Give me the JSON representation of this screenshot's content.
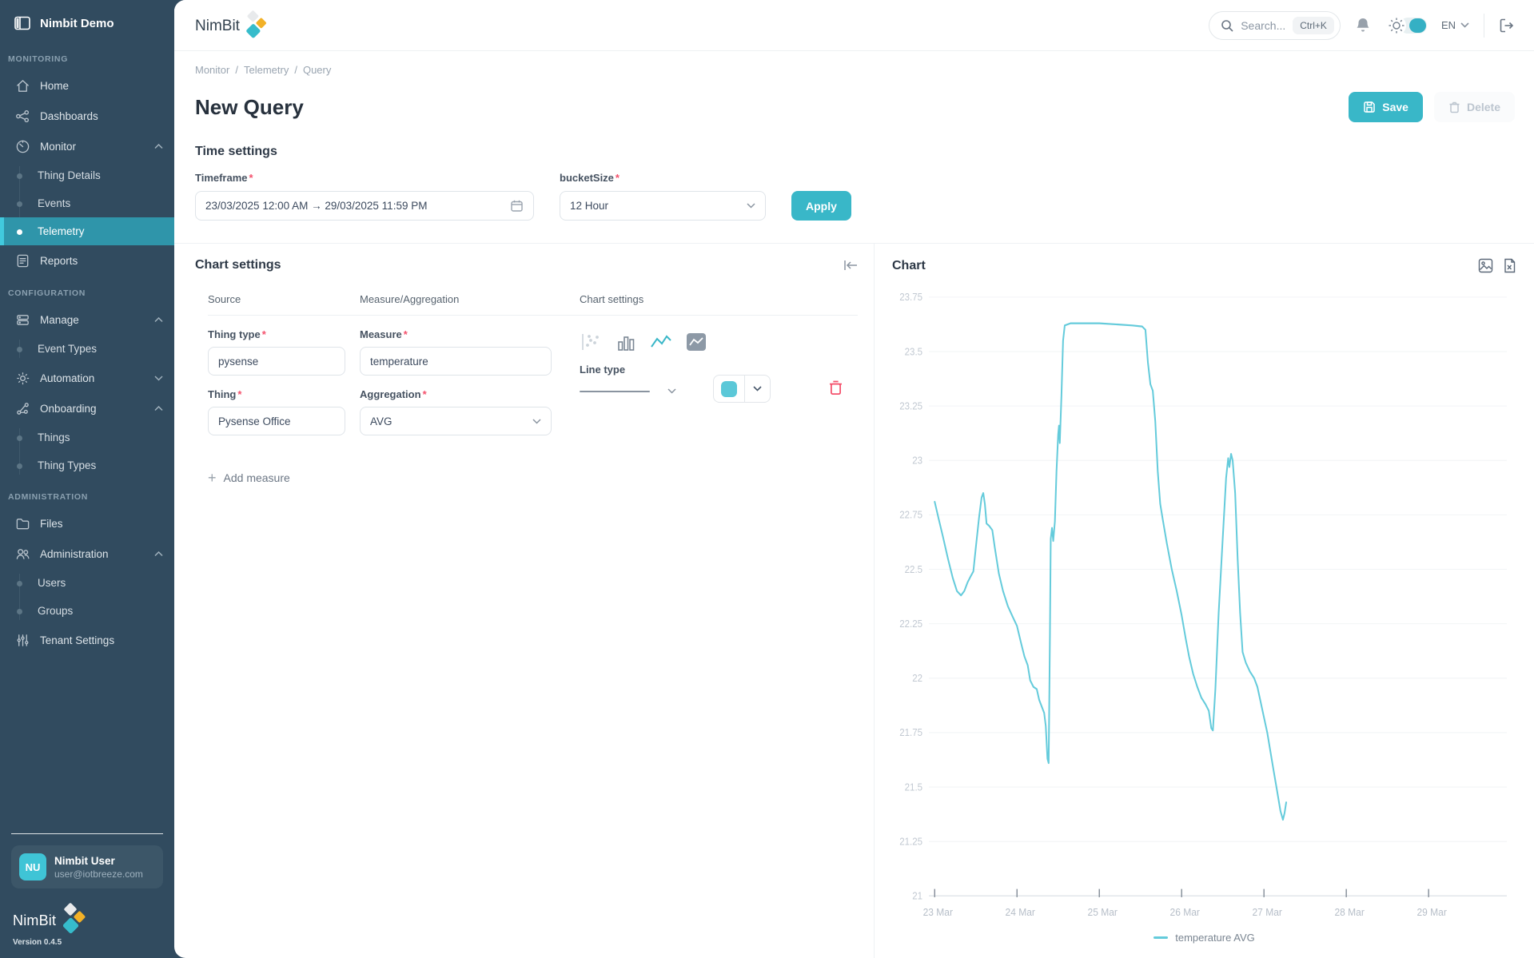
{
  "app": {
    "workspace": "Nimbit Demo",
    "brand": "NimBit",
    "version": "Version 0.4.5"
  },
  "topbar": {
    "search_placeholder": "Search...",
    "search_shortcut": "Ctrl+K",
    "language": "EN",
    "icons": [
      "search-icon",
      "bell-icon",
      "theme-toggle-sun-icon",
      "logout-icon"
    ]
  },
  "sidebar": {
    "sections": [
      {
        "label": "MONITORING",
        "items": [
          {
            "icon": "home",
            "label": "Home"
          },
          {
            "icon": "dashboards",
            "label": "Dashboards"
          },
          {
            "icon": "monitor",
            "label": "Monitor",
            "expanded": true,
            "children": [
              {
                "label": "Thing Details"
              },
              {
                "label": "Events"
              },
              {
                "label": "Telemetry",
                "active": true
              }
            ]
          },
          {
            "icon": "reports",
            "label": "Reports"
          }
        ]
      },
      {
        "label": "CONFIGURATION",
        "items": [
          {
            "icon": "manage",
            "label": "Manage",
            "expanded": true,
            "children": [
              {
                "label": "Event Types"
              }
            ]
          },
          {
            "icon": "automation",
            "label": "Automation",
            "expanded": false
          },
          {
            "icon": "onboarding",
            "label": "Onboarding",
            "expanded": true,
            "children": [
              {
                "label": "Things"
              },
              {
                "label": "Thing Types"
              }
            ]
          }
        ]
      },
      {
        "label": "ADMINISTRATION",
        "items": [
          {
            "icon": "files",
            "label": "Files"
          },
          {
            "icon": "administration",
            "label": "Administration",
            "expanded": true,
            "children": [
              {
                "label": "Users"
              },
              {
                "label": "Groups"
              }
            ]
          },
          {
            "icon": "tenant-settings",
            "label": "Tenant Settings"
          }
        ]
      }
    ]
  },
  "user": {
    "initials": "NU",
    "name": "Nimbit User",
    "email": "user@iotbreeze.com"
  },
  "breadcrumb": {
    "items": [
      "Monitor",
      "Telemetry",
      "Query"
    ],
    "separator": "/"
  },
  "page": {
    "title": "New Query",
    "save_label": "Save",
    "delete_label": "Delete"
  },
  "time_settings": {
    "heading": "Time settings",
    "timeframe_label": "Timeframe",
    "timeframe_value": "23/03/2025 12:00 AM → 29/03/2025 11:59 PM",
    "bucket_label": "bucketSize",
    "bucket_value": "12 Hour",
    "apply_label": "Apply"
  },
  "chart_settings": {
    "heading": "Chart settings",
    "columns": {
      "source": "Source",
      "measure": "Measure/Aggregation",
      "chart": "Chart settings"
    },
    "row": {
      "thing_type_label": "Thing type",
      "thing_type_value": "pysense",
      "thing_label": "Thing",
      "thing_value": "Pysense Office",
      "measure_label": "Measure",
      "measure_value": "temperature",
      "aggregation_label": "Aggregation",
      "aggregation_value": "AVG",
      "line_type_label": "Line type",
      "chart_type_icons": [
        "scatter-chart-icon",
        "bar-chart-icon",
        "line-chart-icon",
        "area-chart-icon"
      ],
      "selected_chart_type": "line",
      "series_color": "#5bc8d8"
    },
    "add_measure_label": "Add measure"
  },
  "chart_panel": {
    "title": "Chart",
    "icons": [
      "export-image-icon",
      "export-excel-icon"
    ]
  },
  "colors": {
    "accent": "#39b7c8",
    "sidebar_bg": "#314b5f",
    "sidebar_active": "#2f95aa",
    "danger": "#f4516c",
    "chart_line": "#64cbdb",
    "logo_gray": "#e8eaec",
    "logo_amber": "#f2b127",
    "logo_teal": "#36bccb"
  },
  "chart_data": {
    "type": "line",
    "title": "Chart",
    "xlabel": "",
    "ylabel": "",
    "xlim": [
      22.93,
      29.95
    ],
    "ylim": [
      21,
      23.75
    ],
    "y_tick_step": 0.25,
    "y_ticks": [
      21,
      21.25,
      21.5,
      21.75,
      22,
      22.25,
      22.5,
      22.75,
      23,
      23.25,
      23.5,
      23.75
    ],
    "x_ticks": [
      {
        "v": 23,
        "label": "23 Mar"
      },
      {
        "v": 24,
        "label": "24 Mar"
      },
      {
        "v": 25,
        "label": "25 Mar"
      },
      {
        "v": 26,
        "label": "26 Mar"
      },
      {
        "v": 27,
        "label": "27 Mar"
      },
      {
        "v": 28,
        "label": "28 Mar"
      },
      {
        "v": 29,
        "label": "29 Mar"
      }
    ],
    "grid": true,
    "legend_position": "bottom",
    "series": [
      {
        "name": "temperature AVG",
        "color": "#64cbdb",
        "points": [
          [
            23.0,
            22.81
          ],
          [
            23.05,
            22.73
          ],
          [
            23.1,
            22.65
          ],
          [
            23.16,
            22.55
          ],
          [
            23.22,
            22.46
          ],
          [
            23.27,
            22.4
          ],
          [
            23.32,
            22.38
          ],
          [
            23.36,
            22.4
          ],
          [
            23.4,
            22.44
          ],
          [
            23.44,
            22.47
          ],
          [
            23.47,
            22.49
          ],
          [
            23.5,
            22.6
          ],
          [
            23.54,
            22.74
          ],
          [
            23.57,
            22.83
          ],
          [
            23.59,
            22.85
          ],
          [
            23.61,
            22.8
          ],
          [
            23.63,
            22.71
          ],
          [
            23.66,
            22.7
          ],
          [
            23.7,
            22.68
          ],
          [
            23.73,
            22.6
          ],
          [
            23.78,
            22.48
          ],
          [
            23.83,
            22.4
          ],
          [
            23.89,
            22.33
          ],
          [
            23.95,
            22.28
          ],
          [
            24.0,
            22.24
          ],
          [
            24.05,
            22.16
          ],
          [
            24.09,
            22.1
          ],
          [
            24.13,
            22.06
          ],
          [
            24.16,
            21.99
          ],
          [
            24.2,
            21.96
          ],
          [
            24.24,
            21.95
          ],
          [
            24.27,
            21.9
          ],
          [
            24.3,
            21.87
          ],
          [
            24.33,
            21.84
          ],
          [
            24.35,
            21.78
          ],
          [
            24.37,
            21.63
          ],
          [
            24.385,
            21.61
          ],
          [
            24.4,
            22.2
          ],
          [
            24.41,
            22.64
          ],
          [
            24.425,
            22.69
          ],
          [
            24.44,
            22.63
          ],
          [
            24.46,
            22.72
          ],
          [
            24.48,
            22.95
          ],
          [
            24.5,
            23.12
          ],
          [
            24.51,
            23.16
          ],
          [
            24.52,
            23.08
          ],
          [
            24.54,
            23.3
          ],
          [
            24.56,
            23.55
          ],
          [
            24.58,
            23.62
          ],
          [
            24.65,
            23.63
          ],
          [
            24.8,
            23.63
          ],
          [
            25.0,
            23.63
          ],
          [
            25.2,
            23.625
          ],
          [
            25.4,
            23.62
          ],
          [
            25.52,
            23.615
          ],
          [
            25.56,
            23.6
          ],
          [
            25.59,
            23.45
          ],
          [
            25.62,
            23.35
          ],
          [
            25.65,
            23.32
          ],
          [
            25.68,
            23.18
          ],
          [
            25.71,
            22.95
          ],
          [
            25.74,
            22.8
          ],
          [
            25.77,
            22.73
          ],
          [
            25.82,
            22.62
          ],
          [
            25.88,
            22.5
          ],
          [
            25.94,
            22.4
          ],
          [
            26.0,
            22.29
          ],
          [
            26.05,
            22.18
          ],
          [
            26.09,
            22.1
          ],
          [
            26.14,
            22.02
          ],
          [
            26.19,
            21.96
          ],
          [
            26.24,
            21.91
          ],
          [
            26.29,
            21.88
          ],
          [
            26.33,
            21.85
          ],
          [
            26.36,
            21.77
          ],
          [
            26.38,
            21.76
          ],
          [
            26.41,
            21.95
          ],
          [
            26.45,
            22.3
          ],
          [
            26.5,
            22.65
          ],
          [
            26.54,
            22.92
          ],
          [
            26.565,
            23.01
          ],
          [
            26.58,
            22.97
          ],
          [
            26.6,
            23.03
          ],
          [
            26.62,
            23.0
          ],
          [
            26.65,
            22.85
          ],
          [
            26.68,
            22.55
          ],
          [
            26.71,
            22.3
          ],
          [
            26.74,
            22.12
          ],
          [
            26.78,
            22.07
          ],
          [
            26.83,
            22.03
          ],
          [
            26.88,
            22.0
          ],
          [
            26.92,
            21.96
          ],
          [
            26.96,
            21.89
          ],
          [
            27.0,
            21.82
          ],
          [
            27.04,
            21.75
          ],
          [
            27.08,
            21.66
          ],
          [
            27.12,
            21.57
          ],
          [
            27.16,
            21.48
          ],
          [
            27.2,
            21.39
          ],
          [
            27.23,
            21.35
          ],
          [
            27.25,
            21.38
          ],
          [
            27.27,
            21.43
          ]
        ]
      }
    ]
  }
}
